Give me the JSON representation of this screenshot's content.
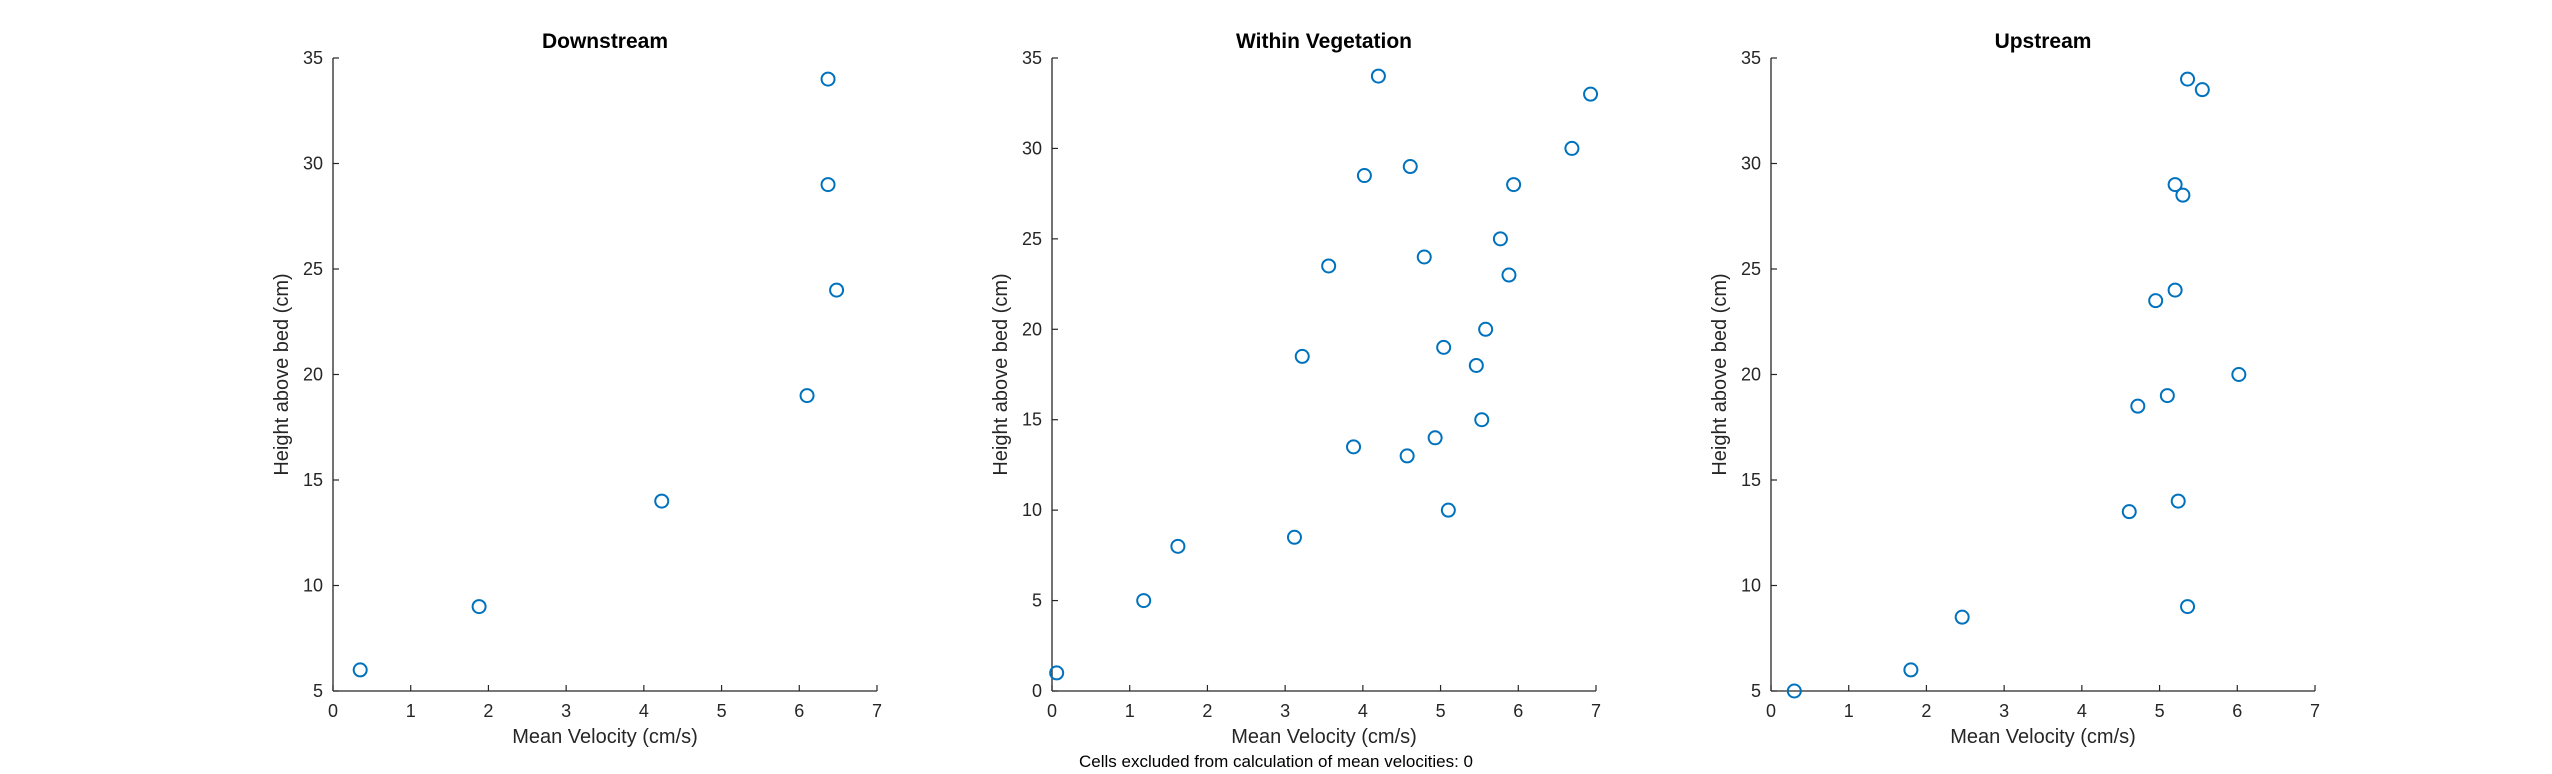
{
  "figure": {
    "footnote": "Cells excluded from calculation of mean velocities: 0",
    "marker_color": "#0072BD"
  },
  "chart_data": [
    {
      "type": "scatter",
      "title": "Downstream",
      "xlabel": "Mean Velocity (cm/s)",
      "ylabel": "Height above bed (cm)",
      "xlim": [
        0,
        7
      ],
      "ylim": [
        5,
        35
      ],
      "xticks": [
        0,
        1,
        2,
        3,
        4,
        5,
        6,
        7
      ],
      "yticks": [
        5,
        10,
        15,
        20,
        25,
        30,
        35
      ],
      "grid": false,
      "points": [
        {
          "x": 0.35,
          "y": 6
        },
        {
          "x": 1.88,
          "y": 9
        },
        {
          "x": 4.23,
          "y": 14
        },
        {
          "x": 6.1,
          "y": 19
        },
        {
          "x": 6.48,
          "y": 24
        },
        {
          "x": 6.37,
          "y": 29
        },
        {
          "x": 6.37,
          "y": 34
        }
      ]
    },
    {
      "type": "scatter",
      "title": "Within Vegetation",
      "xlabel": "Mean Velocity (cm/s)",
      "ylabel": "Height above bed (cm)",
      "xlim": [
        0,
        7
      ],
      "ylim": [
        0,
        35
      ],
      "xticks": [
        0,
        1,
        2,
        3,
        4,
        5,
        6,
        7
      ],
      "yticks": [
        0,
        5,
        10,
        15,
        20,
        25,
        30,
        35
      ],
      "grid": false,
      "points": [
        {
          "x": 0.06,
          "y": 1
        },
        {
          "x": 1.18,
          "y": 5
        },
        {
          "x": 1.62,
          "y": 8
        },
        {
          "x": 3.12,
          "y": 8.5
        },
        {
          "x": 5.1,
          "y": 10
        },
        {
          "x": 4.57,
          "y": 13
        },
        {
          "x": 3.88,
          "y": 13.5
        },
        {
          "x": 4.93,
          "y": 14
        },
        {
          "x": 5.53,
          "y": 15
        },
        {
          "x": 5.46,
          "y": 18
        },
        {
          "x": 3.22,
          "y": 18.5
        },
        {
          "x": 5.04,
          "y": 19
        },
        {
          "x": 5.58,
          "y": 20
        },
        {
          "x": 5.88,
          "y": 23
        },
        {
          "x": 3.56,
          "y": 23.5
        },
        {
          "x": 4.79,
          "y": 24
        },
        {
          "x": 5.77,
          "y": 25
        },
        {
          "x": 5.94,
          "y": 28
        },
        {
          "x": 4.02,
          "y": 28.5
        },
        {
          "x": 4.61,
          "y": 29
        },
        {
          "x": 6.69,
          "y": 30
        },
        {
          "x": 6.93,
          "y": 33
        },
        {
          "x": 4.2,
          "y": 34
        }
      ]
    },
    {
      "type": "scatter",
      "title": "Upstream",
      "xlabel": "Mean Velocity (cm/s)",
      "ylabel": "Height above bed (cm)",
      "xlim": [
        0,
        7
      ],
      "ylim": [
        5,
        35
      ],
      "xticks": [
        0,
        1,
        2,
        3,
        4,
        5,
        6,
        7
      ],
      "yticks": [
        5,
        10,
        15,
        20,
        25,
        30,
        35
      ],
      "grid": false,
      "points": [
        {
          "x": 0.3,
          "y": 5
        },
        {
          "x": 1.8,
          "y": 6
        },
        {
          "x": 2.46,
          "y": 8.5
        },
        {
          "x": 5.36,
          "y": 9
        },
        {
          "x": 4.61,
          "y": 13.5
        },
        {
          "x": 5.24,
          "y": 14
        },
        {
          "x": 4.72,
          "y": 18.5
        },
        {
          "x": 5.1,
          "y": 19
        },
        {
          "x": 6.02,
          "y": 20
        },
        {
          "x": 4.95,
          "y": 23.5
        },
        {
          "x": 5.2,
          "y": 24
        },
        {
          "x": 5.3,
          "y": 28.5
        },
        {
          "x": 5.2,
          "y": 29
        },
        {
          "x": 5.55,
          "y": 33.5
        },
        {
          "x": 5.36,
          "y": 34
        }
      ]
    }
  ]
}
